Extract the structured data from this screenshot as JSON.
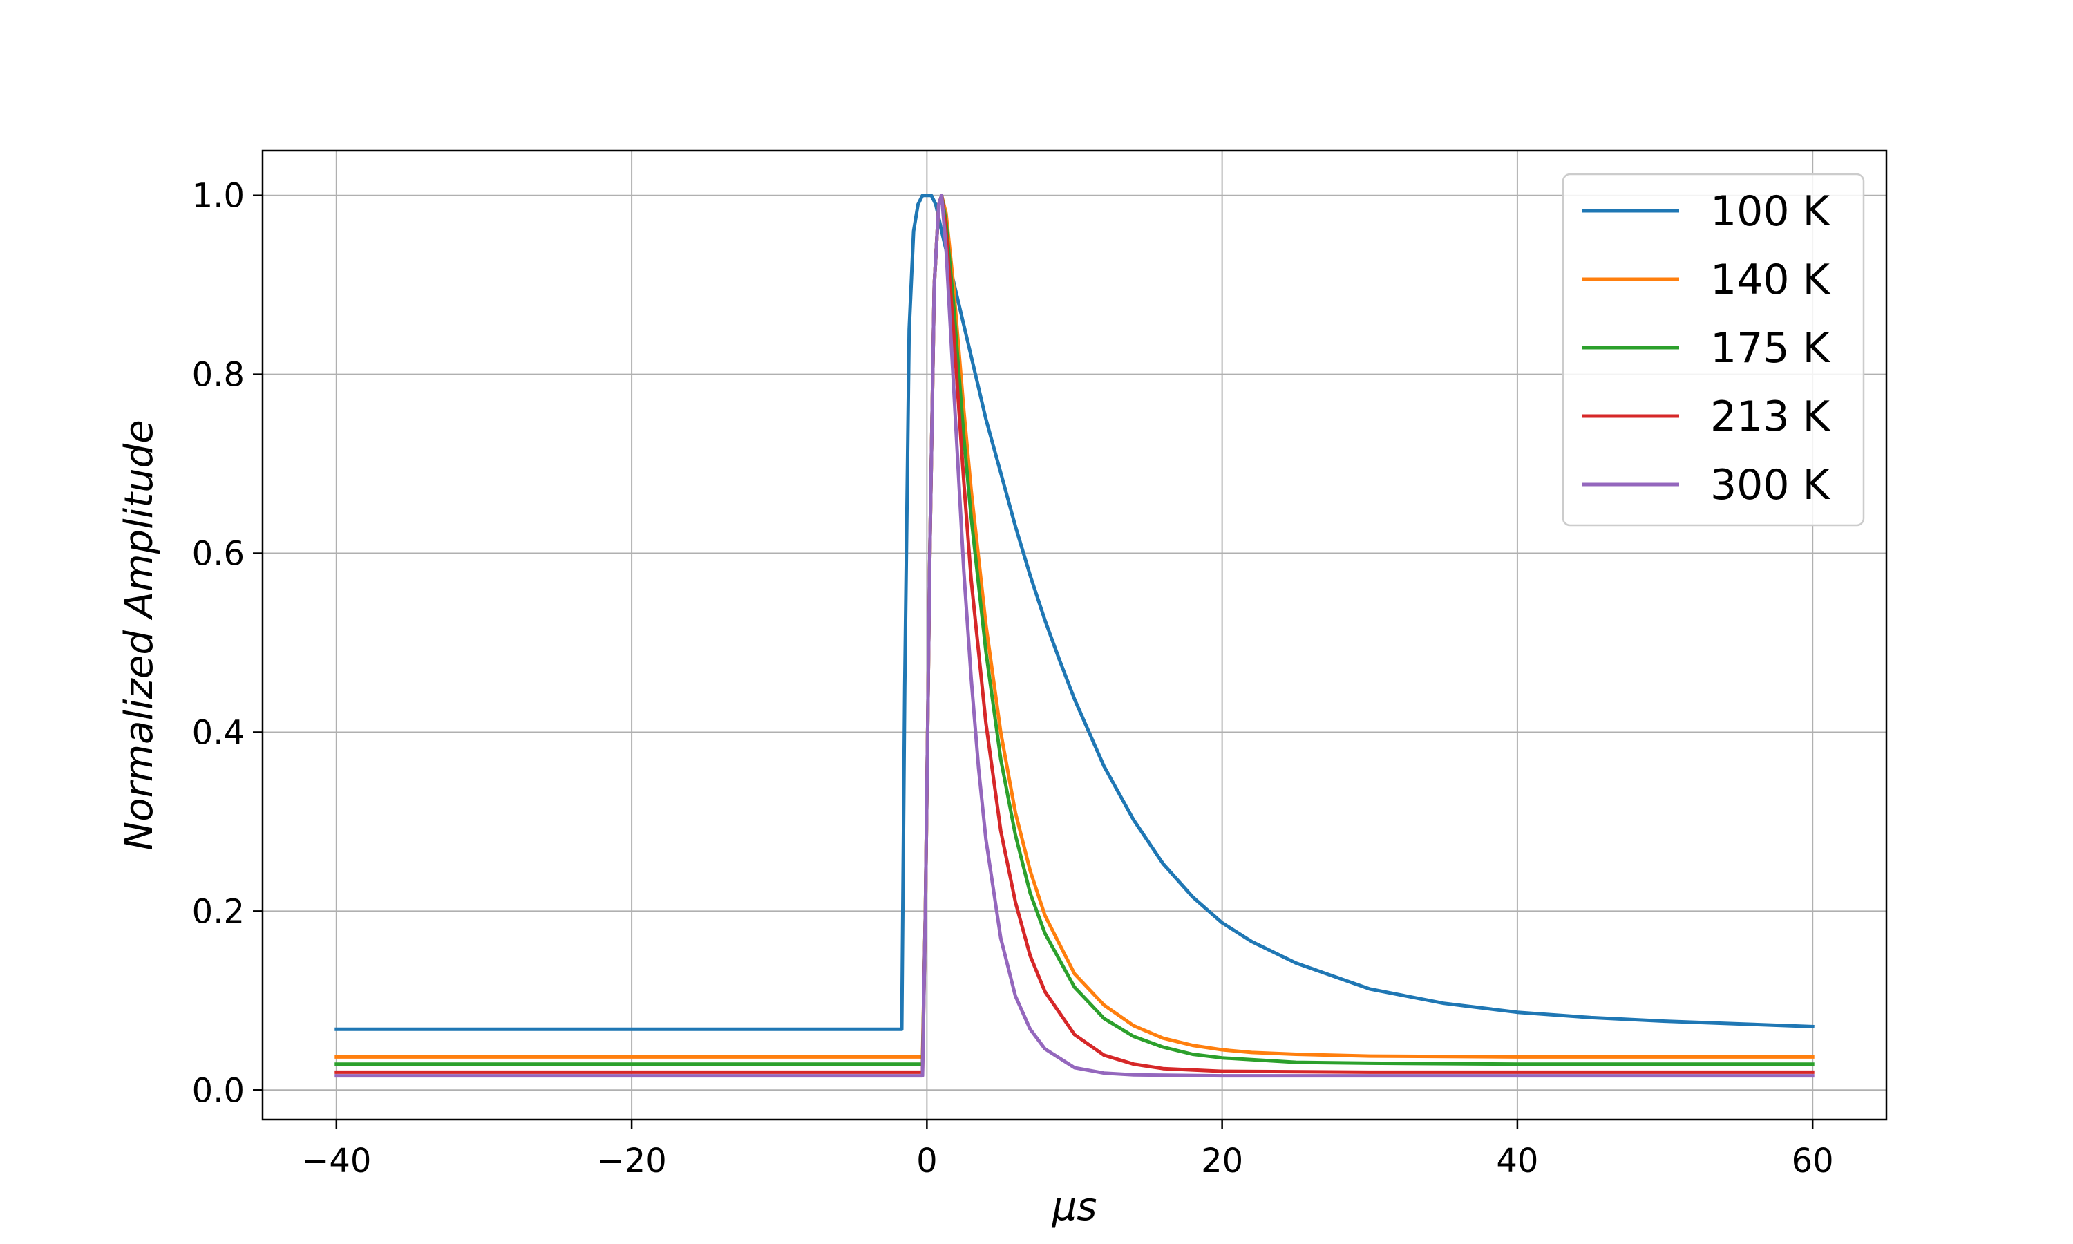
{
  "chart_data": {
    "type": "line",
    "title": "",
    "xlabel": "μs",
    "ylabel": "Normalized Amplitude",
    "xlim": [
      -45,
      65
    ],
    "ylim": [
      -0.033,
      1.05
    ],
    "xticks": [
      -40,
      -20,
      0,
      20,
      40,
      60
    ],
    "xtick_labels": [
      "−40",
      "−20",
      "0",
      "20",
      "40",
      "60"
    ],
    "yticks": [
      0.0,
      0.2,
      0.4,
      0.6,
      0.8,
      1.0
    ],
    "ytick_labels": [
      "0.0",
      "0.2",
      "0.4",
      "0.6",
      "0.8",
      "1.0"
    ],
    "grid": true,
    "legend_position": "top-right",
    "series": [
      {
        "name": "100 K",
        "color": "#1f77b4",
        "x": [
          -40,
          -1.7,
          -1.5,
          -1.2,
          -0.9,
          -0.6,
          -0.3,
          0.0,
          0.3,
          0.6,
          1.0,
          2.0,
          3.0,
          4.0,
          5.0,
          6.0,
          7.0,
          8.0,
          9.0,
          10.0,
          12.0,
          14.0,
          16.0,
          18.0,
          20.0,
          22.0,
          25.0,
          30.0,
          35.0,
          40.0,
          45.0,
          50.0,
          55.0,
          60.0
        ],
        "values": [
          0.068,
          0.068,
          0.45,
          0.85,
          0.96,
          0.99,
          1.0,
          1.0,
          1.0,
          0.99,
          0.96,
          0.89,
          0.82,
          0.75,
          0.69,
          0.63,
          0.575,
          0.525,
          0.48,
          0.437,
          0.362,
          0.302,
          0.253,
          0.216,
          0.187,
          0.166,
          0.142,
          0.113,
          0.097,
          0.087,
          0.081,
          0.077,
          0.074,
          0.071
        ]
      },
      {
        "name": "140 K",
        "color": "#ff7f0e",
        "x": [
          -40,
          -0.3,
          -0.1,
          0.2,
          0.5,
          0.8,
          1.0,
          1.3,
          1.8,
          2.5,
          3.0,
          4.0,
          5.0,
          6.0,
          7.0,
          8.0,
          10.0,
          12.0,
          14.0,
          16.0,
          18.0,
          20.0,
          22.0,
          25.0,
          30.0,
          40.0,
          60.0
        ],
        "values": [
          0.037,
          0.037,
          0.2,
          0.6,
          0.9,
          0.99,
          1.0,
          0.98,
          0.9,
          0.76,
          0.67,
          0.52,
          0.4,
          0.31,
          0.245,
          0.195,
          0.13,
          0.095,
          0.072,
          0.058,
          0.05,
          0.045,
          0.042,
          0.04,
          0.038,
          0.037,
          0.037
        ]
      },
      {
        "name": "175 K",
        "color": "#2ca02c",
        "x": [
          -40,
          -0.3,
          -0.1,
          0.2,
          0.5,
          0.8,
          1.0,
          1.3,
          1.8,
          2.5,
          3.0,
          4.0,
          5.0,
          6.0,
          7.0,
          8.0,
          10.0,
          12.0,
          14.0,
          16.0,
          18.0,
          20.0,
          25.0,
          30.0,
          40.0,
          60.0
        ],
        "values": [
          0.029,
          0.029,
          0.2,
          0.6,
          0.9,
          0.99,
          1.0,
          0.97,
          0.88,
          0.73,
          0.64,
          0.49,
          0.37,
          0.285,
          0.22,
          0.175,
          0.115,
          0.08,
          0.06,
          0.048,
          0.04,
          0.036,
          0.031,
          0.03,
          0.029,
          0.029
        ]
      },
      {
        "name": "213 K",
        "color": "#d62728",
        "x": [
          -40,
          -0.3,
          -0.1,
          0.2,
          0.5,
          0.8,
          1.0,
          1.3,
          1.8,
          2.5,
          3.0,
          4.0,
          5.0,
          6.0,
          7.0,
          8.0,
          10.0,
          12.0,
          14.0,
          16.0,
          20.0,
          30.0,
          60.0
        ],
        "values": [
          0.02,
          0.02,
          0.2,
          0.6,
          0.9,
          0.99,
          1.0,
          0.96,
          0.85,
          0.68,
          0.57,
          0.41,
          0.29,
          0.21,
          0.15,
          0.11,
          0.062,
          0.039,
          0.029,
          0.024,
          0.021,
          0.02,
          0.02
        ]
      },
      {
        "name": "300 K",
        "color": "#9467bd",
        "x": [
          -40,
          -0.3,
          -0.1,
          0.2,
          0.5,
          0.8,
          1.0,
          1.3,
          1.8,
          2.5,
          3.0,
          3.5,
          4.0,
          5.0,
          6.0,
          7.0,
          8.0,
          10.0,
          12.0,
          14.0,
          20.0,
          60.0
        ],
        "values": [
          0.016,
          0.016,
          0.2,
          0.6,
          0.9,
          0.99,
          1.0,
          0.94,
          0.79,
          0.58,
          0.46,
          0.36,
          0.28,
          0.17,
          0.105,
          0.068,
          0.046,
          0.025,
          0.019,
          0.017,
          0.016,
          0.016
        ]
      }
    ]
  }
}
